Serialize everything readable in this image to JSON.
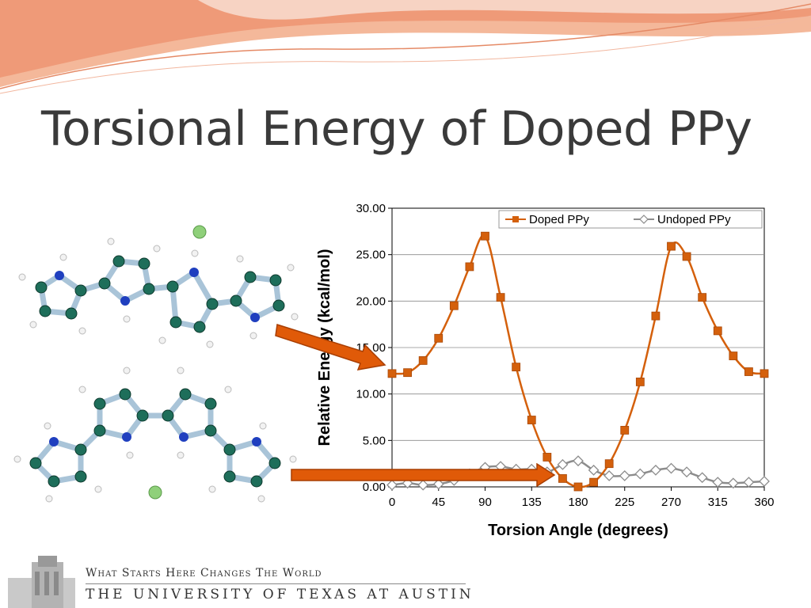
{
  "slide": {
    "title": "Torsional Energy of Doped PPy"
  },
  "footer": {
    "tagline": "What Starts Here Changes The World",
    "university": "THE UNIVERSITY OF TEXAS AT AUSTIN"
  },
  "colors": {
    "doped": "#d4600c",
    "undoped": "#8c8c8c",
    "title": "#3a3a3a",
    "swoosh": "#f0a080",
    "arrow": "#e05a08",
    "carbon": "#1e6e5a",
    "nitrogen": "#1f3fbf",
    "dopant": "#8fd07a"
  },
  "chart_data": {
    "type": "line",
    "xlabel": "Torsion Angle (degrees)",
    "ylabel": "Relative Energy (kcal/mol)",
    "xlim": [
      0,
      360
    ],
    "ylim": [
      0,
      30
    ],
    "x_ticks": [
      0,
      45,
      90,
      135,
      180,
      225,
      270,
      315,
      360
    ],
    "y_ticks": [
      "0.00",
      "5.00",
      "10.00",
      "15.00",
      "20.00",
      "25.00",
      "30.00"
    ],
    "grid": "horizontal",
    "legend_position": "top-right",
    "x": [
      0,
      15,
      30,
      45,
      60,
      75,
      90,
      105,
      120,
      135,
      150,
      165,
      180,
      195,
      210,
      225,
      240,
      255,
      270,
      285,
      300,
      315,
      330,
      345,
      360
    ],
    "series": [
      {
        "name": "Doped PPy",
        "marker": "square",
        "values": [
          12.2,
          12.3,
          13.6,
          16.0,
          19.5,
          23.7,
          27.0,
          20.4,
          12.9,
          7.2,
          3.2,
          0.9,
          0.0,
          0.5,
          2.5,
          6.1,
          11.3,
          18.4,
          25.9,
          24.8,
          20.4,
          16.8,
          14.1,
          12.4,
          12.2
        ]
      },
      {
        "name": "Undoped PPy",
        "marker": "diamond",
        "values": [
          0.2,
          0.4,
          0.2,
          0.3,
          0.7,
          1.4,
          2.1,
          2.2,
          1.9,
          1.9,
          1.6,
          2.4,
          2.8,
          1.8,
          1.2,
          1.2,
          1.4,
          1.8,
          2.0,
          1.6,
          1.0,
          0.5,
          0.4,
          0.5,
          0.6
        ]
      }
    ]
  }
}
